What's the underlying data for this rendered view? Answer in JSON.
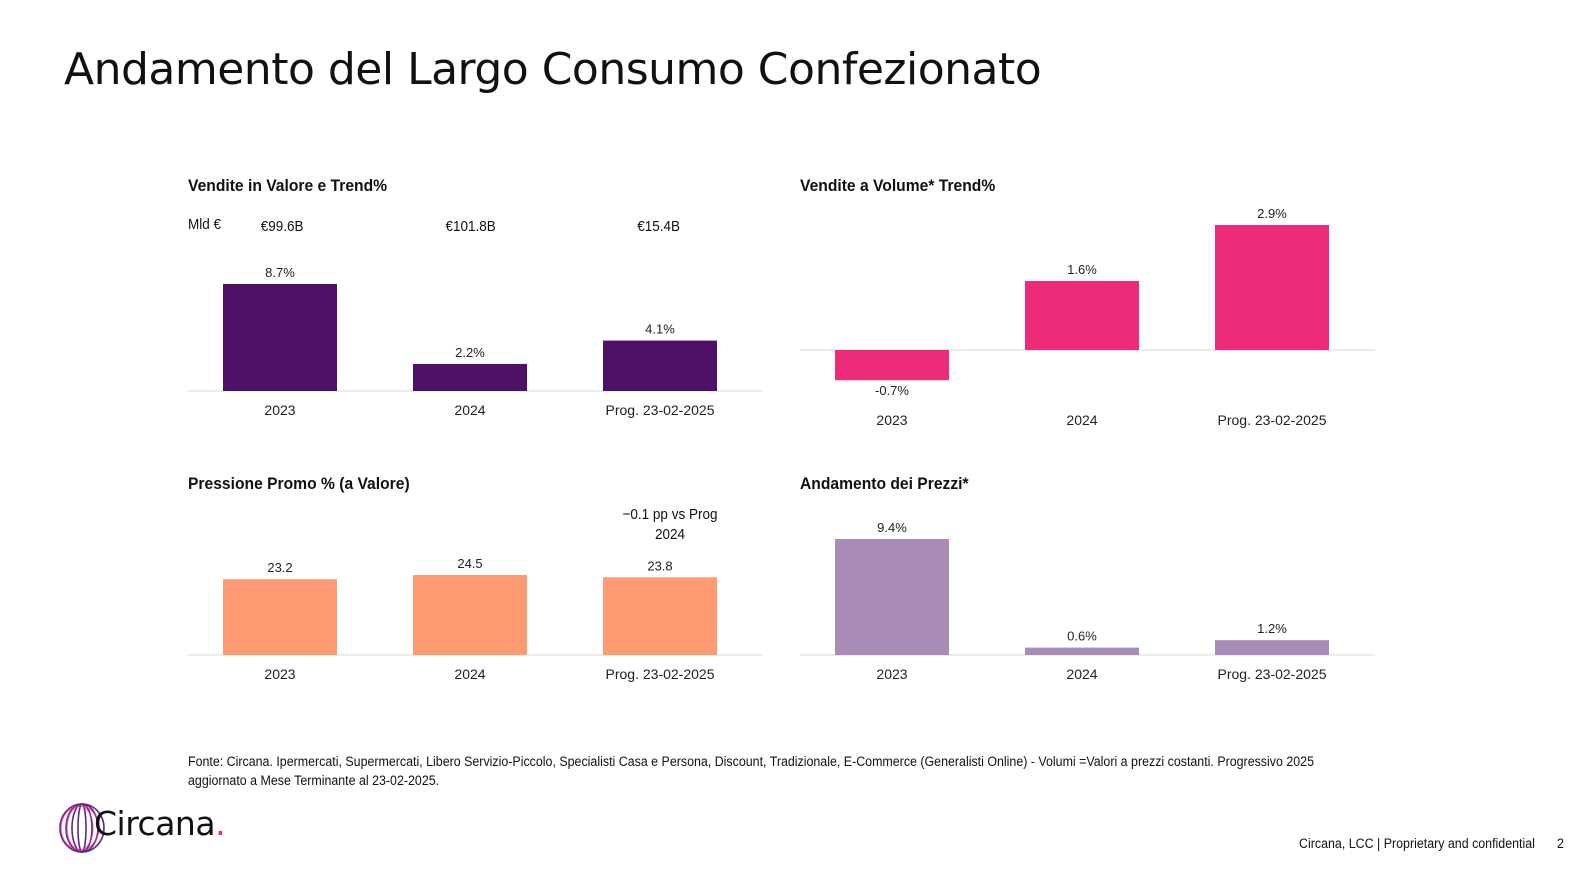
{
  "page": {
    "title": "Andamento del Largo Consumo Confezionato",
    "footnote": "Fonte: Circana. Ipermercati, Supermercati, Libero Servizio-Piccolo, Specialisti Casa e Persona, Discount, Tradizionale, E-Commerce (Generalisti Online) - Volumi =Valori a prezzi costanti. Progressivo 2025 aggiornato a Mese Terminante al 23-02-2025.",
    "logo_text": "Circana",
    "logo_dot": ".",
    "footer_text": "Circana, LCC |  Proprietary and confidential",
    "page_number": "2"
  },
  "colors": {
    "valore": "#4f1166",
    "volume": "#ee2a7b",
    "promo": "#ff9a73",
    "prezzi": "#a98bb8",
    "axis": "#d9d9d9",
    "logo_accent": "#ee2a7b"
  },
  "chart_data": [
    {
      "id": "valore",
      "type": "bar",
      "title": "Vendite in Valore e Trend%",
      "unit_label": "Mld €",
      "totals": [
        "€99.6B",
        "€101.8B",
        "€15.4B"
      ],
      "categories": [
        "2023",
        "2024",
        "Prog. 23-02-2025"
      ],
      "values": [
        8.7,
        2.2,
        4.1
      ],
      "data_labels": [
        "8.7%",
        "2.2%",
        "4.1%"
      ],
      "ylim": [
        0,
        8.7
      ]
    },
    {
      "id": "volume",
      "type": "bar",
      "title": "Vendite a Volume* Trend%",
      "categories": [
        "2023",
        "2024",
        "Prog. 23-02-2025"
      ],
      "values": [
        -0.7,
        1.6,
        2.9
      ],
      "data_labels": [
        "-0.7%",
        "1.6%",
        "2.9%"
      ],
      "ylim": [
        -0.7,
        2.9
      ]
    },
    {
      "id": "promo",
      "type": "bar",
      "title": "Pressione Promo % (a Valore)",
      "note": "−0.1 pp vs Prog 2024",
      "categories": [
        "2023",
        "2024",
        "Prog. 23-02-2025"
      ],
      "values": [
        23.2,
        24.5,
        23.8
      ],
      "data_labels": [
        "23.2",
        "24.5",
        "23.8"
      ],
      "ylim": [
        0,
        24.5
      ]
    },
    {
      "id": "prezzi",
      "type": "bar",
      "title": "Andamento dei Prezzi*",
      "categories": [
        "2023",
        "2024",
        "Prog. 23-02-2025"
      ],
      "values": [
        9.4,
        0.6,
        1.2
      ],
      "data_labels": [
        "9.4%",
        "0.6%",
        "1.2%"
      ],
      "ylim": [
        0,
        9.4
      ]
    }
  ]
}
